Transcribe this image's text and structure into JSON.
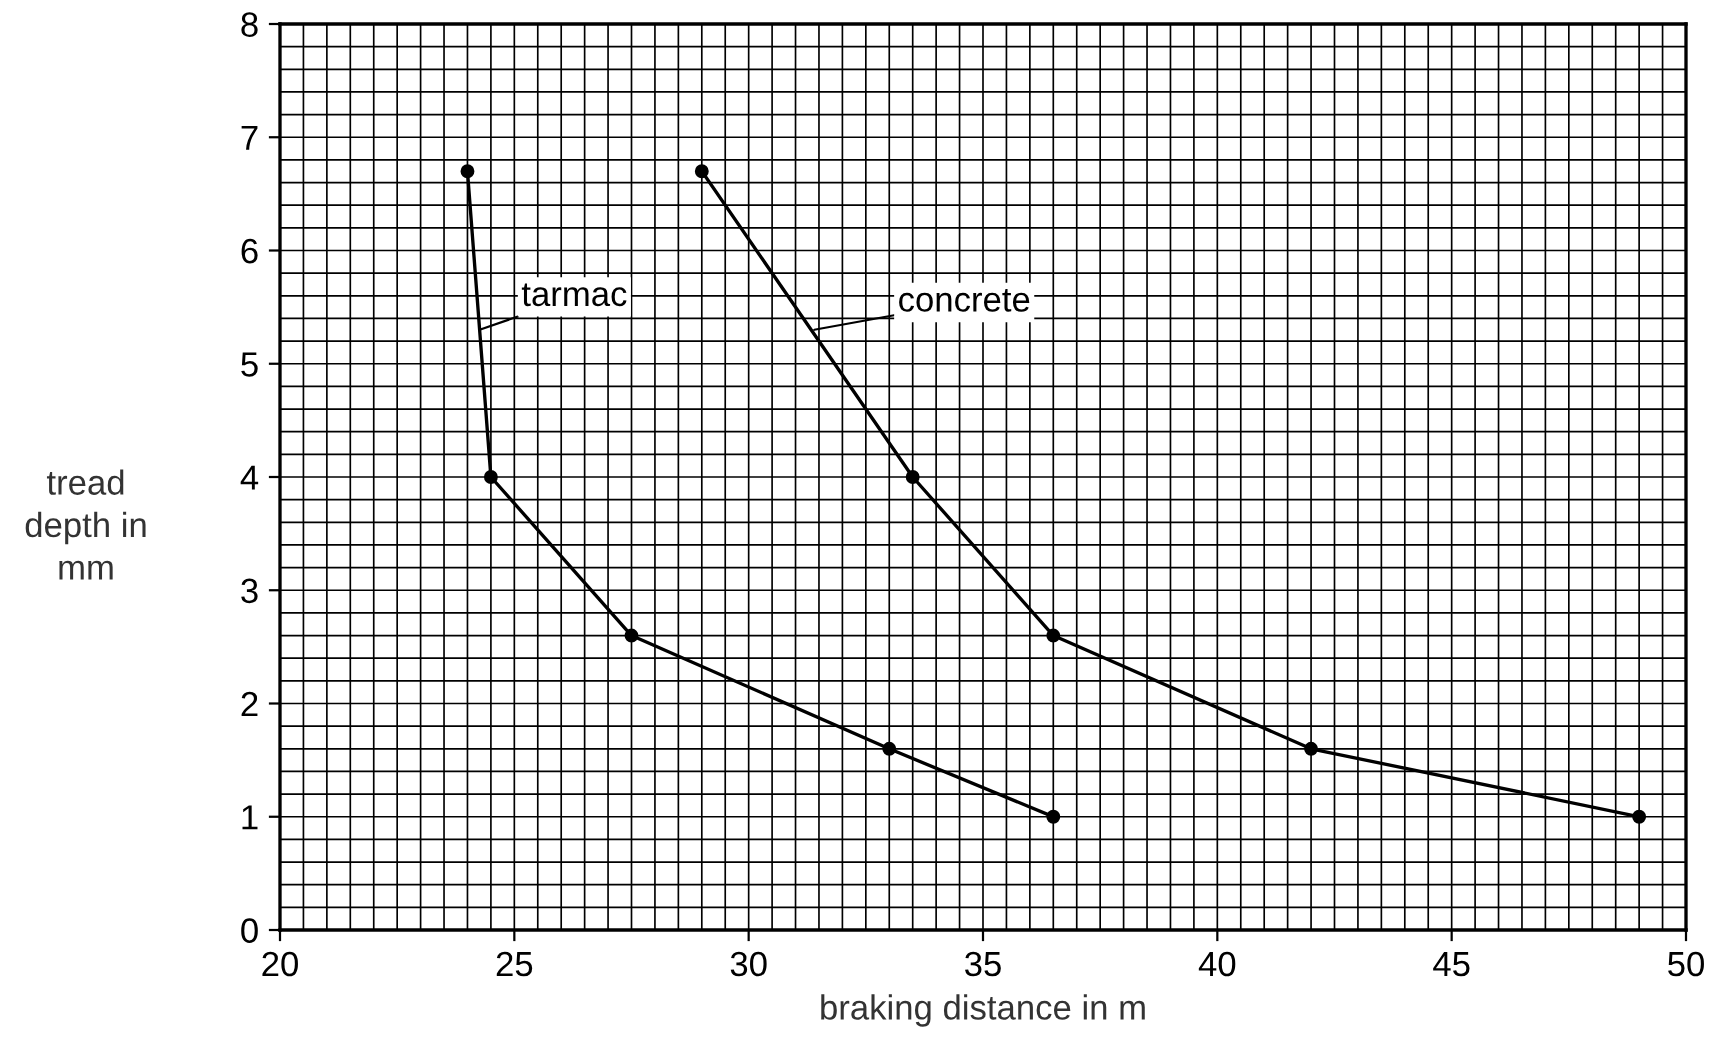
{
  "chart_data": {
    "type": "line",
    "xlabel": "braking distance in m",
    "ylabel": "tread\ndepth in\nmm",
    "xlim": [
      20,
      50
    ],
    "xticks": [
      20,
      25,
      30,
      35,
      40,
      45,
      50
    ],
    "ylim": [
      0,
      8
    ],
    "yticks": [
      0,
      1,
      2,
      3,
      4,
      5,
      6,
      7,
      8
    ],
    "grid": true,
    "marker": "circle",
    "line_style": "solid",
    "legend": false,
    "series": [
      {
        "x": [
          24,
          24.5,
          27.5,
          33,
          36.5
        ],
        "values": [
          6.7,
          4,
          2.6,
          1.6,
          1.0
        ],
        "color": "#000000"
      },
      {
        "x": [
          29,
          33.5,
          36.5,
          42,
          49
        ],
        "values": [
          6.7,
          4,
          2.6,
          1.6,
          1.0
        ],
        "color": "#000000"
      }
    ],
    "annotations": [
      {
        "text": "tarmac",
        "x": 24.26,
        "y": 5.3
      },
      {
        "text": "concrete",
        "x": 31.4,
        "y": 5.3
      }
    ]
  }
}
